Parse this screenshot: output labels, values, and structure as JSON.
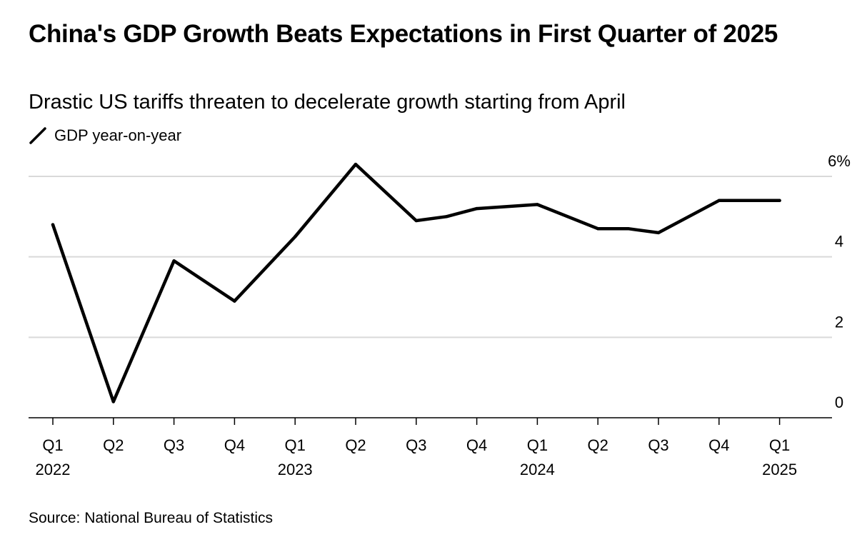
{
  "title": "China's GDP Growth Beats Expectations in First Quarter of 2025",
  "subtitle": "Drastic US tariffs threaten to decelerate growth starting from April",
  "legend": {
    "label": "GDP year-on-year",
    "icon": "line-swatch-icon"
  },
  "source": "Source: National Bureau of Statistics",
  "colors": {
    "line": "#000000",
    "grid": "#d9d9d9",
    "axis": "#000000"
  },
  "chart_data": {
    "type": "line",
    "title": "China's GDP Growth Beats Expectations in First Quarter of 2025",
    "subtitle": "Drastic US tariffs threaten to decelerate growth starting from April",
    "xlabel": "",
    "ylabel": "",
    "ylim": [
      0,
      6
    ],
    "y_axis_side": "right",
    "grid": true,
    "legend_position": "top-left",
    "y_ticks": [
      {
        "value": 0,
        "label": "0"
      },
      {
        "value": 2,
        "label": "2"
      },
      {
        "value": 4,
        "label": "4"
      },
      {
        "value": 6,
        "label": "6%"
      }
    ],
    "x_ticks": [
      {
        "quarter": "Q1",
        "year": "2022"
      },
      {
        "quarter": "Q2",
        "year": ""
      },
      {
        "quarter": "Q3",
        "year": ""
      },
      {
        "quarter": "Q4",
        "year": ""
      },
      {
        "quarter": "Q1",
        "year": "2023"
      },
      {
        "quarter": "Q2",
        "year": ""
      },
      {
        "quarter": "Q3",
        "year": ""
      },
      {
        "quarter": "Q4",
        "year": ""
      },
      {
        "quarter": "Q1",
        "year": "2024"
      },
      {
        "quarter": "Q2",
        "year": ""
      },
      {
        "quarter": "Q3",
        "year": ""
      },
      {
        "quarter": "Q4",
        "year": ""
      },
      {
        "quarter": "Q1",
        "year": "2025"
      }
    ],
    "series": [
      {
        "name": "GDP year-on-year",
        "x": [
          0,
          1,
          2,
          2.5,
          3,
          4,
          5,
          6,
          6.5,
          7,
          8,
          9,
          9.5,
          10,
          11,
          12
        ],
        "values": [
          4.8,
          0.4,
          3.9,
          3.4,
          2.9,
          4.5,
          6.3,
          4.9,
          5.0,
          5.2,
          5.3,
          4.7,
          4.7,
          4.6,
          5.4,
          5.4
        ]
      }
    ]
  }
}
